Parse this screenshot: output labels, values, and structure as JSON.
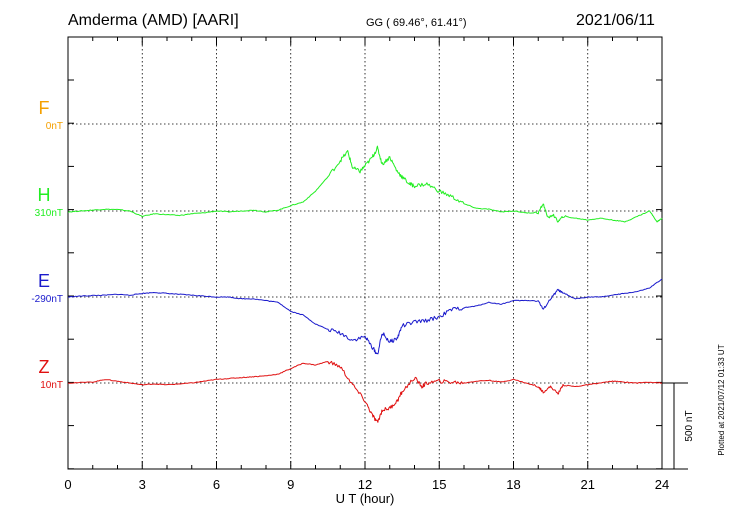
{
  "header": {
    "station": "Amderma (AMD)  [AARI]",
    "coords": "GG ( 69.46°,  61.41°)",
    "date": "2021/06/11"
  },
  "side_note": "Plotted at 2021/07/12 01:33 UT",
  "scale_label": "500 nT",
  "chart_data": {
    "type": "line",
    "xlabel": "U T (hour)",
    "xlim": [
      0,
      24
    ],
    "xticks": [
      "0",
      "3",
      "6",
      "9",
      "12",
      "15",
      "18",
      "21",
      "24"
    ],
    "series": [
      {
        "name": "F",
        "baseline": "0nT",
        "color": "#f5a000",
        "x": [],
        "y": []
      },
      {
        "name": "H",
        "baseline": "310nT",
        "color": "#22ee22",
        "x": [
          0,
          0.5,
          1,
          1.5,
          2,
          2.5,
          3,
          3.5,
          4,
          4.5,
          5,
          5.5,
          6,
          6.5,
          7,
          7.5,
          8,
          8.5,
          9,
          9.5,
          10,
          10.5,
          11,
          11.3,
          11.5,
          11.8,
          12,
          12.3,
          12.5,
          12.7,
          13,
          13.3,
          13.5,
          13.8,
          14,
          14.5,
          15,
          15.5,
          16,
          16.5,
          17,
          17.5,
          18,
          18.5,
          19,
          19.2,
          19.4,
          19.6,
          19.8,
          20,
          20.5,
          21,
          21.5,
          22,
          22.5,
          23,
          23.5,
          23.8,
          24
        ],
        "y": [
          -5,
          0,
          5,
          10,
          8,
          0,
          -30,
          -15,
          -20,
          -25,
          -15,
          -10,
          0,
          -5,
          0,
          5,
          -5,
          5,
          30,
          50,
          110,
          190,
          280,
          330,
          240,
          220,
          250,
          300,
          350,
          260,
          300,
          220,
          190,
          150,
          140,
          150,
          110,
          80,
          40,
          15,
          10,
          -5,
          0,
          -10,
          -10,
          40,
          -40,
          -20,
          -60,
          -30,
          -40,
          -50,
          -40,
          -50,
          -60,
          -30,
          0,
          -60,
          -40
        ]
      },
      {
        "name": "E",
        "baseline": "-290nT",
        "color": "#1a1acc",
        "x": [
          0,
          0.5,
          1,
          1.5,
          2,
          2.5,
          3,
          3.5,
          4,
          4.5,
          5,
          5.5,
          6,
          6.5,
          7,
          7.5,
          8,
          8.5,
          9,
          9.5,
          10,
          10.5,
          11,
          11.5,
          12,
          12.3,
          12.5,
          12.7,
          13,
          13.3,
          13.5,
          14,
          14.5,
          15,
          15.5,
          16,
          16.5,
          17,
          17.5,
          18,
          18.5,
          19,
          19.2,
          19.5,
          19.8,
          20,
          20.5,
          21,
          21.5,
          22,
          22.5,
          23,
          23.5,
          24
        ],
        "y": [
          0,
          5,
          8,
          10,
          15,
          10,
          20,
          25,
          20,
          15,
          10,
          5,
          0,
          0,
          -10,
          -10,
          -20,
          -30,
          -80,
          -100,
          -150,
          -180,
          -200,
          -240,
          -220,
          -280,
          -320,
          -200,
          -250,
          -230,
          -160,
          -140,
          -130,
          -110,
          -70,
          -60,
          -50,
          -30,
          -40,
          -20,
          -20,
          -20,
          -70,
          -10,
          40,
          20,
          -10,
          0,
          0,
          10,
          20,
          30,
          50,
          100
        ]
      },
      {
        "name": "Z",
        "baseline": "10nT",
        "color": "#e01010",
        "x": [
          0,
          1,
          1.5,
          2,
          2.5,
          3,
          3.5,
          4,
          4.5,
          5,
          5.5,
          6,
          6.5,
          7,
          7.5,
          8,
          8.5,
          9,
          9.5,
          10,
          10.5,
          11,
          11.5,
          12,
          12.3,
          12.5,
          12.7,
          13,
          13.3,
          13.5,
          14,
          14.3,
          14.5,
          15,
          15.5,
          16,
          16.5,
          17,
          17.5,
          18,
          18.5,
          19,
          19.2,
          19.5,
          19.8,
          20,
          20.5,
          21,
          21.5,
          22,
          22.5,
          23,
          23.5,
          24
        ],
        "y": [
          0,
          5,
          20,
          10,
          0,
          -10,
          -5,
          -10,
          -5,
          0,
          10,
          20,
          25,
          30,
          35,
          40,
          50,
          80,
          110,
          100,
          120,
          90,
          -10,
          -100,
          -180,
          -220,
          -150,
          -140,
          -100,
          -50,
          30,
          -20,
          0,
          10,
          5,
          0,
          10,
          15,
          5,
          20,
          0,
          -20,
          -50,
          -20,
          -60,
          -10,
          -20,
          -10,
          0,
          10,
          5,
          0,
          5,
          0
        ]
      }
    ]
  }
}
